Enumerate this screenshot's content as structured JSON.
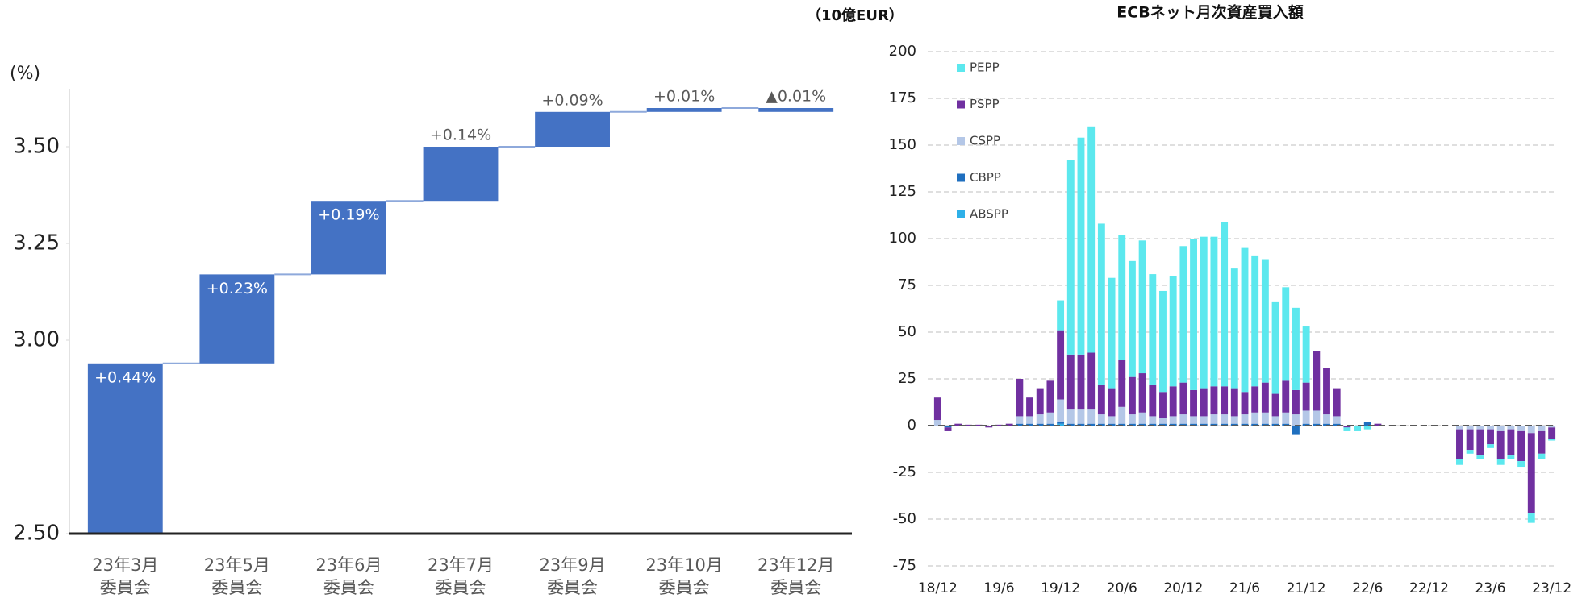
{
  "chart_data": [
    {
      "type": "waterfall",
      "y_label": "(%)",
      "categories": [
        [
          "23年3月",
          "委員会"
        ],
        [
          "23年5月",
          "委員会"
        ],
        [
          "23年6月",
          "委員会"
        ],
        [
          "23年7月",
          "委員会"
        ],
        [
          "23年9月",
          "委員会"
        ],
        [
          "23年10月",
          "委員会"
        ],
        [
          "23年12月",
          "委員会"
        ]
      ],
      "values": [
        0.44,
        0.23,
        0.19,
        0.14,
        0.09,
        0.01,
        -0.01
      ],
      "value_labels": [
        "+0.44%",
        "+0.23%",
        "+0.19%",
        "+0.14%",
        "+0.09%",
        "+0.01%",
        "▲0.01%"
      ],
      "color": "#4472c4",
      "ylim": [
        2.5,
        3.65
      ],
      "yticks": [
        {
          "value": 2.5,
          "label": "2.50"
        },
        {
          "value": 3,
          "label": "3.00"
        },
        3.25,
        {
          "value": 3.5,
          "label": "3.50"
        }
      ]
    },
    {
      "type": "stacked_bar",
      "title": "ECBネット月次資産買入額",
      "y_label": "（10億EUR）",
      "categories": [
        "18/12",
        null,
        null,
        null,
        null,
        null,
        "19/6",
        null,
        null,
        null,
        null,
        null,
        "19/12",
        null,
        null,
        null,
        null,
        null,
        "20/6",
        null,
        null,
        null,
        null,
        null,
        "20/12",
        null,
        null,
        null,
        null,
        null,
        "21/6",
        null,
        null,
        null,
        null,
        null,
        "21/12",
        null,
        null,
        null,
        null,
        null,
        "22/6",
        null,
        null,
        null,
        null,
        null,
        "22/12",
        null,
        null,
        null,
        null,
        null,
        "23/6",
        null,
        null,
        null,
        null,
        null,
        "23/12"
      ],
      "series": [
        {
          "name": "PEPP",
          "color": "#5ce8ee",
          "values": [
            0,
            0,
            0,
            0,
            0,
            0,
            0,
            0,
            0,
            0,
            0,
            0,
            16,
            104,
            116,
            121,
            86,
            59,
            67,
            62,
            71,
            59,
            54,
            59,
            73,
            81,
            81,
            80,
            88,
            64,
            77,
            70,
            66,
            49,
            50,
            44,
            30,
            0,
            0,
            0,
            -2,
            -3,
            -2,
            0,
            0,
            0,
            0,
            0,
            0,
            0,
            0,
            -3,
            -2,
            -2,
            -2,
            -3,
            -2,
            -3,
            -5,
            -3,
            -1
          ]
        },
        {
          "name": "PSPP",
          "color": "#7030a0",
          "values": [
            12,
            -2,
            1,
            0.5,
            0.5,
            -1,
            0.5,
            1,
            20,
            10,
            14,
            17,
            37,
            29,
            29,
            30,
            16,
            15,
            25,
            20,
            21,
            17,
            14,
            16,
            17,
            14,
            15,
            15,
            15,
            15,
            12,
            14,
            16,
            12,
            17,
            13,
            15,
            32,
            25,
            15,
            -1,
            0,
            0,
            1,
            0,
            0,
            0,
            0,
            0,
            0,
            0,
            -16,
            -11,
            -14,
            -8,
            -15,
            -14,
            -16,
            -43,
            -12,
            -6
          ]
        },
        {
          "name": "CSPP",
          "color": "#b4c7e7",
          "values": [
            3,
            0,
            0,
            0,
            0,
            0,
            0,
            0,
            4,
            4,
            5,
            6,
            12,
            8,
            8,
            8,
            5,
            4,
            9,
            5,
            6,
            4,
            3,
            4,
            5,
            4,
            4,
            5,
            5,
            4,
            5,
            6,
            6,
            4,
            6,
            6,
            7,
            7,
            5,
            4,
            0,
            0,
            0,
            0,
            0,
            0,
            0,
            0,
            0,
            0,
            0,
            -2,
            -2,
            -2,
            -2,
            -3,
            -2,
            -3,
            -4,
            -3,
            -1
          ]
        },
        {
          "name": "CBPP",
          "color": "#1f6fbf",
          "values": [
            0,
            -1,
            0,
            0,
            0,
            0,
            0,
            0,
            1,
            1,
            1,
            1,
            1,
            1,
            1,
            1,
            1,
            1,
            1,
            1,
            1,
            1,
            1,
            1,
            1,
            1,
            1,
            1,
            1,
            1,
            1,
            1,
            1,
            1,
            1,
            -5,
            1,
            1,
            1,
            1,
            0,
            0,
            2,
            0,
            0,
            0,
            0,
            0,
            0,
            0,
            0,
            0,
            0,
            0,
            0,
            0,
            0,
            0,
            0,
            0,
            0
          ]
        },
        {
          "name": "ABSPP",
          "color": "#2eb0e8",
          "values": [
            0,
            0,
            0,
            0,
            0,
            0,
            0,
            0,
            0,
            0,
            0,
            0,
            1,
            0,
            0,
            0,
            0,
            0,
            0,
            0,
            0,
            0,
            0,
            0,
            0,
            0,
            0,
            0,
            0,
            0,
            0,
            0,
            0,
            0,
            0,
            0,
            0,
            0,
            0,
            0,
            0,
            0,
            0,
            0,
            0,
            0,
            0,
            0,
            0,
            0,
            0,
            0,
            0,
            0,
            0,
            0,
            0,
            0,
            0,
            0,
            0
          ]
        }
      ],
      "ylim": [
        -75,
        200
      ],
      "yticks": [
        -75,
        -50,
        -25,
        0,
        25,
        50,
        75,
        100,
        125,
        150,
        175,
        200
      ],
      "grid": true,
      "legend": "upper left"
    }
  ]
}
